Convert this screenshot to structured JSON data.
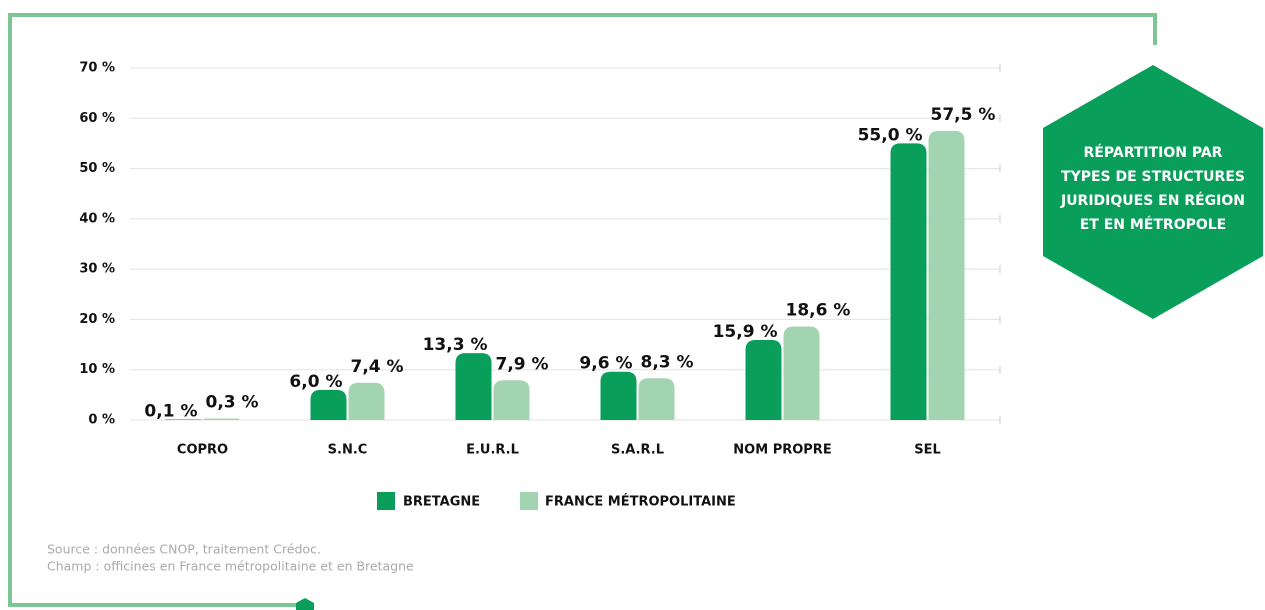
{
  "chart_data": {
    "type": "bar",
    "title": [
      "RÉPARTITION PAR",
      "TYPES DE STRUCTURES",
      "JURIDIQUES EN RÉGION",
      "ET EN MÉTROPOLE"
    ],
    "categories": [
      "COPRO",
      "S.N.C",
      "E.U.R.L",
      "S.A.R.L",
      "NOM PROPRE",
      "SEL"
    ],
    "series": [
      {
        "name": "BRETAGNE",
        "color": "#0a9e5b",
        "values": [
          0.1,
          6.0,
          13.3,
          9.6,
          15.9,
          55.0
        ],
        "value_labels": [
          "0,1 %",
          "6,0 %",
          "13,3 %",
          "9,6 %",
          "15,9 %",
          "55,0 %"
        ]
      },
      {
        "name": "FRANCE MÉTROPOLITAINE",
        "color": "#a3d4b2",
        "values": [
          0.3,
          7.4,
          7.9,
          8.3,
          18.6,
          57.5
        ],
        "value_labels": [
          "0,3 %",
          "7,4 %",
          "7,9 %",
          "8,3 %",
          "18,6 %",
          "57,5 %"
        ]
      }
    ],
    "ylim": [
      0,
      70
    ],
    "yticks": [
      {
        "value": 0,
        "label": "0 %"
      },
      {
        "value": 10,
        "label": "10 %"
      },
      {
        "value": 20,
        "label": "20 %"
      },
      {
        "value": 30,
        "label": "30 %"
      },
      {
        "value": 40,
        "label": "40 %"
      },
      {
        "value": 50,
        "label": "50 %"
      },
      {
        "value": 60,
        "label": "60 %"
      },
      {
        "value": 70,
        "label": "70 %"
      }
    ],
    "grid": true,
    "legend": "bottom",
    "notes": [
      "Source : données CNOP, traitement Crédoc.",
      "Champ : officines en France métropolitaine et en Bretagne"
    ]
  }
}
